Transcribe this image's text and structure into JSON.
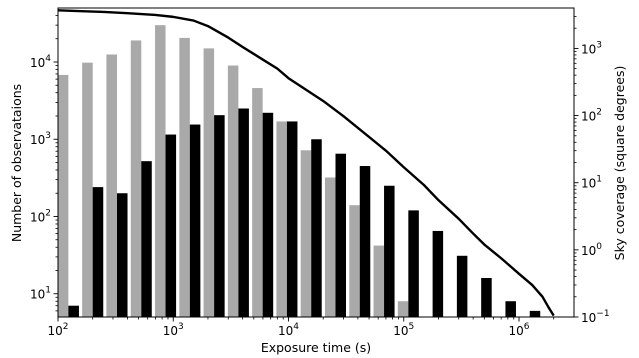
{
  "chart_data": {
    "type": "bar",
    "title": "",
    "xlabel": "Exposure time (s)",
    "ylabel": "Number of observataions",
    "y2label": "Sky coverage (square degrees)",
    "xscale": "log",
    "yscale": "log",
    "y2scale": "log",
    "xlim": [
      100,
      3000000
    ],
    "ylim": [
      5,
      50000
    ],
    "y2lim": [
      0.1,
      4000
    ],
    "grid": false,
    "legend": false,
    "x_ticks": [
      {
        "value": 100,
        "mant": "10",
        "exp": "2"
      },
      {
        "value": 1000,
        "mant": "10",
        "exp": "3"
      },
      {
        "value": 10000,
        "mant": "10",
        "exp": "4"
      },
      {
        "value": 100000,
        "mant": "10",
        "exp": "5"
      },
      {
        "value": 1000000,
        "mant": "10",
        "exp": "6"
      }
    ],
    "y_ticks": [
      {
        "value": 10,
        "mant": "10",
        "exp": "1"
      },
      {
        "value": 100,
        "mant": "10",
        "exp": "2"
      },
      {
        "value": 1000,
        "mant": "10",
        "exp": "3"
      },
      {
        "value": 10000,
        "mant": "10",
        "exp": "4"
      }
    ],
    "y2_ticks": [
      {
        "value": 0.1,
        "mant": "10",
        "exp": "−1"
      },
      {
        "value": 1,
        "mant": "10",
        "exp": "0"
      },
      {
        "value": 10,
        "mant": "10",
        "exp": "1"
      },
      {
        "value": 100,
        "mant": "10",
        "exp": "2"
      },
      {
        "value": 1000,
        "mant": "10",
        "exp": "3"
      }
    ],
    "series": [
      {
        "color": "#a9a9a9",
        "bars": [
          {
            "x0": 100,
            "x1": 123,
            "value": 6800
          },
          {
            "x0": 162,
            "x1": 200,
            "value": 9800
          },
          {
            "x0": 263,
            "x1": 325,
            "value": 12500
          },
          {
            "x0": 428,
            "x1": 528,
            "value": 19000
          },
          {
            "x0": 695,
            "x1": 857,
            "value": 30000
          },
          {
            "x0": 1130,
            "x1": 1393,
            "value": 20500
          },
          {
            "x0": 1833,
            "x1": 2262,
            "value": 15000
          },
          {
            "x0": 2978,
            "x1": 3674,
            "value": 9000
          },
          {
            "x0": 4838,
            "x1": 5968,
            "value": 4600
          },
          {
            "x0": 7857,
            "x1": 9693,
            "value": 1700
          },
          {
            "x0": 12759,
            "x1": 15741,
            "value": 720
          },
          {
            "x0": 20722,
            "x1": 25565,
            "value": 320
          },
          {
            "x0": 33660,
            "x1": 41528,
            "value": 140
          },
          {
            "x0": 54675,
            "x1": 67453,
            "value": 42
          },
          {
            "x0": 88803,
            "x1": 109560,
            "value": 8
          }
        ]
      },
      {
        "color": "#000000",
        "bars": [
          {
            "x0": 123,
            "x1": 152,
            "value": 7
          },
          {
            "x0": 200,
            "x1": 247,
            "value": 240
          },
          {
            "x0": 325,
            "x1": 401,
            "value": 200
          },
          {
            "x0": 528,
            "x1": 651,
            "value": 520
          },
          {
            "x0": 857,
            "x1": 1058,
            "value": 1150
          },
          {
            "x0": 1393,
            "x1": 1719,
            "value": 1550
          },
          {
            "x0": 2262,
            "x1": 2791,
            "value": 2050
          },
          {
            "x0": 3674,
            "x1": 4533,
            "value": 2500
          },
          {
            "x0": 5968,
            "x1": 7362,
            "value": 2200
          },
          {
            "x0": 9693,
            "x1": 11958,
            "value": 1700
          },
          {
            "x0": 15741,
            "x1": 19421,
            "value": 1000
          },
          {
            "x0": 25565,
            "x1": 31541,
            "value": 650
          },
          {
            "x0": 41528,
            "x1": 51231,
            "value": 450
          },
          {
            "x0": 67453,
            "x1": 83214,
            "value": 250
          },
          {
            "x0": 109560,
            "x1": 135162,
            "value": 120
          },
          {
            "x0": 177956,
            "x1": 219556,
            "value": 65
          },
          {
            "x0": 289025,
            "x1": 356588,
            "value": 31
          },
          {
            "x0": 469510,
            "x1": 579269,
            "value": 16
          },
          {
            "x0": 762679,
            "x1": 940879,
            "value": 8
          },
          {
            "x0": 1238954,
            "x1": 1528437,
            "value": 6
          }
        ]
      }
    ],
    "curve": {
      "axis": "right",
      "color": "#000000",
      "points": [
        [
          100,
          3700
        ],
        [
          150,
          3600
        ],
        [
          250,
          3500
        ],
        [
          400,
          3350
        ],
        [
          700,
          3150
        ],
        [
          1000,
          2950
        ],
        [
          1500,
          2600
        ],
        [
          2000,
          2150
        ],
        [
          3000,
          1450
        ],
        [
          4000,
          1050
        ],
        [
          6000,
          680
        ],
        [
          8000,
          500
        ],
        [
          10000,
          360
        ],
        [
          20000,
          165
        ],
        [
          30000,
          98
        ],
        [
          50000,
          48
        ],
        [
          70000,
          30
        ],
        [
          100000,
          17
        ],
        [
          150000,
          9.2
        ],
        [
          200000,
          5.5
        ],
        [
          300000,
          2.9
        ],
        [
          400000,
          1.75
        ],
        [
          500000,
          1.2
        ],
        [
          700000,
          0.75
        ],
        [
          1000000,
          0.44
        ],
        [
          1300000,
          0.3
        ],
        [
          1600000,
          0.2
        ],
        [
          1800000,
          0.14
        ],
        [
          2000000,
          0.105
        ]
      ]
    }
  }
}
